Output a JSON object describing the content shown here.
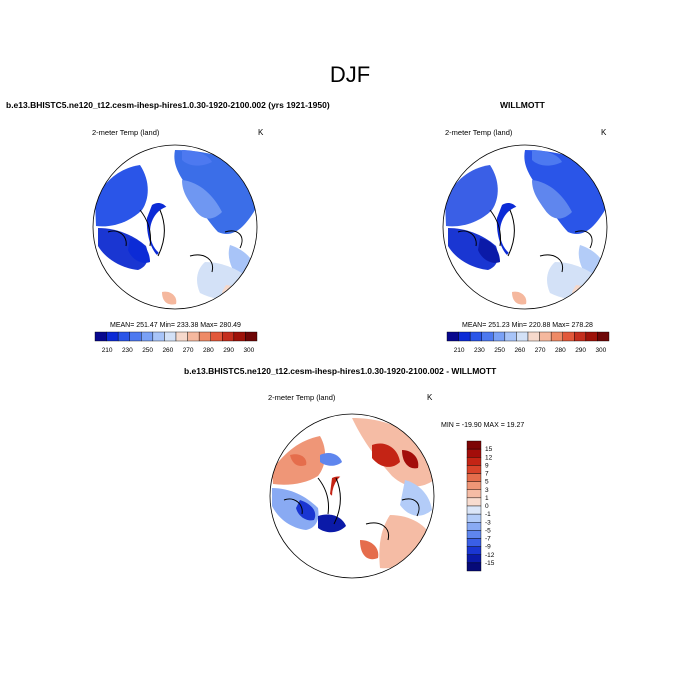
{
  "page": {
    "title": "DJF"
  },
  "panels": [
    {
      "title": "b.e13.BHISTC5.ne120_t12.cesm-ihesp-hires1.0.30-1920-2100.002 (yrs 1921-1950)",
      "variable": "2-meter Temp (land)",
      "units": "K",
      "stats": "MEAN= 251.47  Min= 233.38  Max= 280.49"
    },
    {
      "title": "WILLMOTT",
      "variable": "2-meter Temp (land)",
      "units": "K",
      "stats": "MEAN= 251.23  Min= 220.88  Max= 278.28"
    },
    {
      "title": "b.e13.BHISTC5.ne120_t12.cesm-ihesp-hires1.0.30-1920-2100.002 - WILLMOTT",
      "variable": "2-meter Temp (land)",
      "units": "K",
      "stats": "MIN = -19.90 MAX =  19.27"
    }
  ],
  "colorbars": {
    "absolute": {
      "tick_labels": [
        "210",
        "230",
        "250",
        "260",
        "270",
        "280",
        "290",
        "300"
      ],
      "colors": [
        "#08088e",
        "#0c2bd6",
        "#2a55e8",
        "#4d79f0",
        "#7aa1f6",
        "#a8c4f8",
        "#d3e1f7",
        "#f6d9cc",
        "#f5b89e",
        "#ee8a66",
        "#e2583a",
        "#c42e1d",
        "#9e1209",
        "#6e0606"
      ]
    },
    "difference": {
      "tick_labels": [
        "15",
        "12",
        "9",
        "7",
        "5",
        "3",
        "1",
        "0",
        "-1",
        "-3",
        "-5",
        "-7",
        "-9",
        "-12",
        "-15"
      ],
      "colors": [
        "#7d0505",
        "#a30d0a",
        "#c42415",
        "#d9432a",
        "#e56d4c",
        "#ef9677",
        "#f5bca5",
        "#f8dccf",
        "#dbe6f8",
        "#b3ccf8",
        "#89aaf3",
        "#5f86ee",
        "#3a5fe6",
        "#1a36d2",
        "#0b1aa8",
        "#060a78"
      ]
    }
  }
}
